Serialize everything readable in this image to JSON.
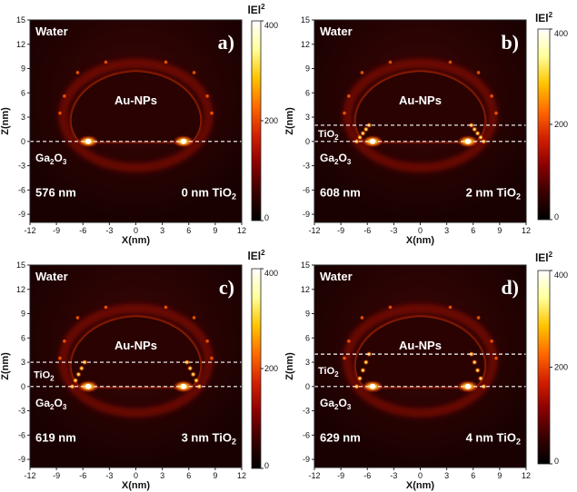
{
  "axes": {
    "xlabel": "X(nm)",
    "ylabel": "Z(nm)",
    "xticks": [
      "-12",
      "-9",
      "-6",
      "-3",
      "0",
      "3",
      "6",
      "9",
      "12"
    ],
    "zticks": [
      "15",
      "12",
      "9",
      "6",
      "3",
      "0",
      "-3",
      "-6",
      "-9"
    ]
  },
  "colorbar": {
    "title": "lEl",
    "exp": "2",
    "ticks": [
      {
        "v": 400,
        "label": "400"
      },
      {
        "v": 200,
        "label": "200"
      },
      {
        "v": 0,
        "label": "0"
      }
    ],
    "stops": [
      "#000000",
      "#3a0000",
      "#8b0000",
      "#d42000",
      "#ff6a00",
      "#ffc400",
      "#ffff9a",
      "#ffffff"
    ]
  },
  "labels": {
    "medium": "Water",
    "particle": "Au-NPs",
    "substrate_main": "Ga",
    "substrate_sub1": "2",
    "substrate_o": "O",
    "substrate_sub2": "3",
    "shell_main": "TiO",
    "shell_sub": "2"
  },
  "panels": [
    {
      "letter": "a)",
      "wavelength": "576 nm",
      "thickness_num": "0",
      "thickness_unit": "nm TiO",
      "thickness_sub": "2",
      "tio2_nm": 0
    },
    {
      "letter": "b)",
      "wavelength": "608 nm",
      "thickness_num": "2",
      "thickness_unit": "nm TiO",
      "thickness_sub": "2",
      "tio2_nm": 2
    },
    {
      "letter": "c)",
      "wavelength": "619 nm",
      "thickness_num": "3",
      "thickness_unit": "nm TiO",
      "thickness_sub": "2",
      "tio2_nm": 3
    },
    {
      "letter": "d)",
      "wavelength": "629 nm",
      "thickness_num": "4",
      "thickness_unit": "nm TiO",
      "thickness_sub": "2",
      "tio2_nm": 4
    }
  ]
}
